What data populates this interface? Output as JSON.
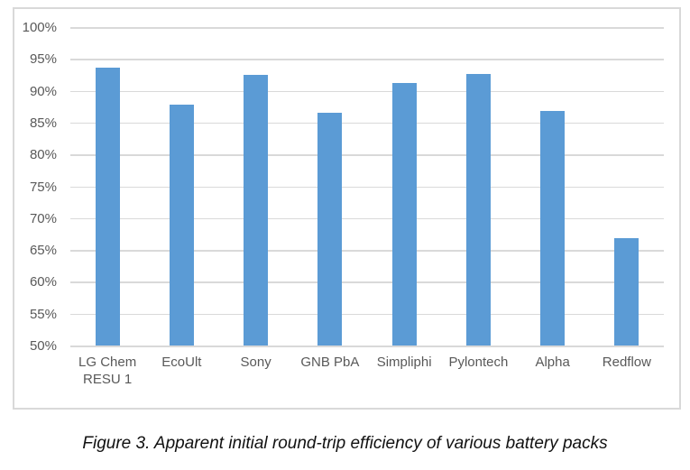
{
  "figure": {
    "caption": "Figure 3. Apparent initial round-trip efficiency of various battery packs"
  },
  "chart_data": {
    "type": "bar",
    "title": "",
    "xlabel": "",
    "ylabel": "",
    "categories": [
      "LG Chem RESU 1",
      "EcoUlt",
      "Sony",
      "GNB PbA",
      "Simpliphi",
      "Pylontech",
      "Alpha",
      "Redflow"
    ],
    "values": [
      93.6,
      87.8,
      92.5,
      86.5,
      91.2,
      92.7,
      86.8,
      66.8
    ],
    "value_unit": "%",
    "ylim": [
      50,
      100
    ],
    "y_ticks": [
      100,
      95,
      90,
      85,
      80,
      75,
      70,
      65,
      60,
      55,
      50
    ],
    "y_tick_labels": [
      "100%",
      "95%",
      "90%",
      "85%",
      "80%",
      "75%",
      "70%",
      "65%",
      "60%",
      "55%",
      "50%"
    ],
    "grid": true,
    "legend": false,
    "colors": {
      "bar": "#5B9BD5",
      "gridline": "#D9D9D9",
      "axis_text": "#595959",
      "chart_border": "#D9D9D9",
      "caption_text": "#111111",
      "background": "#FFFFFF"
    }
  }
}
